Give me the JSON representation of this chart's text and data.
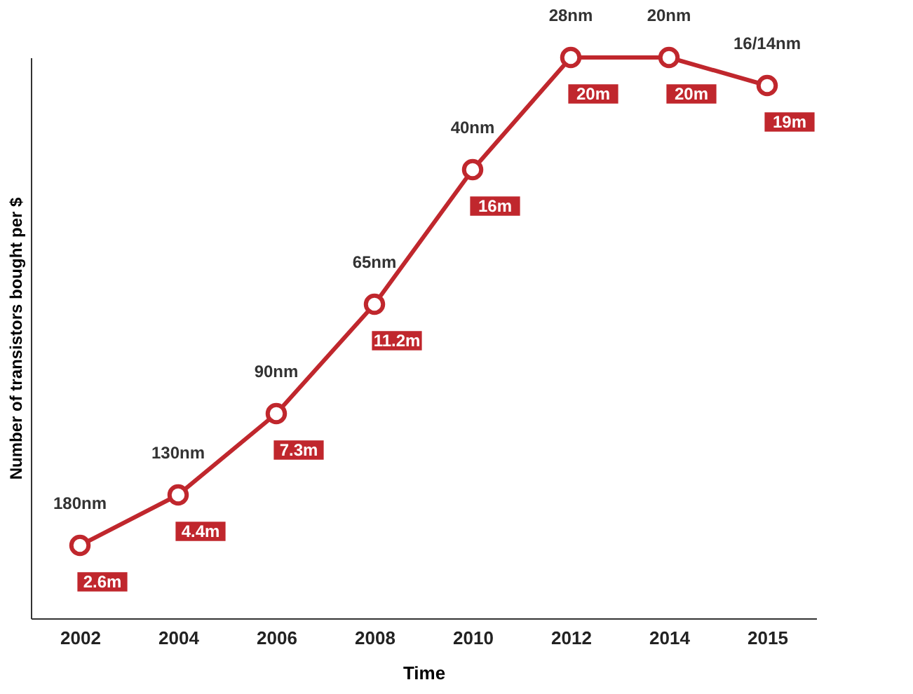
{
  "chart_data": {
    "type": "line",
    "xlabel": "Time",
    "ylabel": "Number of transistors bought per $",
    "categories": [
      "2002",
      "2004",
      "2006",
      "2008",
      "2010",
      "2012",
      "2014",
      "2015"
    ],
    "series": [
      {
        "color": "#c0272d",
        "values": [
          2.6,
          4.4,
          7.3,
          11.2,
          16,
          20,
          20,
          19
        ],
        "value_labels": [
          "2.6m",
          "4.4m",
          "7.3m",
          "11.2m",
          "16m",
          "20m",
          "20m",
          "19m"
        ]
      }
    ],
    "annotations": [
      "180nm",
      "130nm",
      "90nm",
      "65nm",
      "40nm",
      "28nm",
      "20nm",
      "16/14nm"
    ],
    "marker": "circle",
    "grid": false,
    "tick_labels": "x"
  }
}
